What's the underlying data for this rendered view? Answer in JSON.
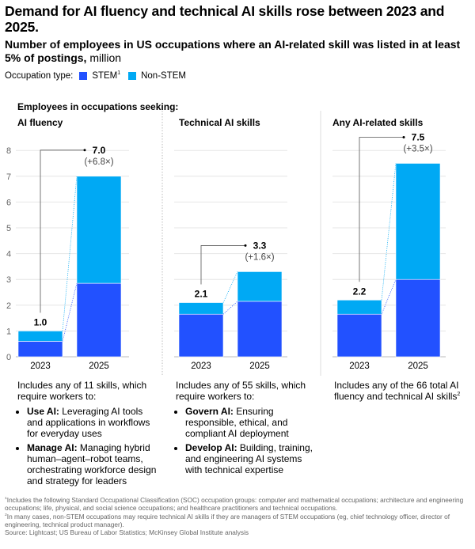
{
  "title": "Demand for AI fluency and technical AI skills rose between 2023 and 2025.",
  "subtitle": "Number of employees in US occupations where an AI-related skill was listed in at least 5% of postings,",
  "unit": "million",
  "legend": {
    "label": "Occupation type:",
    "items": [
      {
        "name": "STEM",
        "sup": "1",
        "color": "#2251ff"
      },
      {
        "name": "Non-STEM",
        "color": "#00a9f4"
      }
    ]
  },
  "seeking_label": "Employees in occupations seeking:",
  "chart_data": [
    {
      "type": "bar",
      "stacked": true,
      "title": "AI fluency",
      "categories": [
        "2023",
        "2025"
      ],
      "series": [
        {
          "name": "STEM",
          "values": [
            0.6,
            2.85
          ]
        },
        {
          "name": "Non-STEM",
          "values": [
            0.4,
            4.15
          ]
        }
      ],
      "totals": [
        "1.0",
        "7.0"
      ],
      "change": "(+6.8×)",
      "ylim": [
        0,
        8
      ],
      "yticks": [
        "0",
        "1",
        "2",
        "3",
        "4",
        "5",
        "6",
        "7",
        "8"
      ],
      "grid": true
    },
    {
      "type": "bar",
      "stacked": true,
      "title": "Technical AI skills",
      "categories": [
        "2023",
        "2025"
      ],
      "series": [
        {
          "name": "STEM",
          "values": [
            1.65,
            2.15
          ]
        },
        {
          "name": "Non-STEM",
          "values": [
            0.45,
            1.15
          ]
        }
      ],
      "totals": [
        "2.1",
        "3.3"
      ],
      "change": "(+1.6×)",
      "ylim": [
        0,
        8
      ],
      "grid": true
    },
    {
      "type": "bar",
      "stacked": true,
      "title": "Any AI-related skills",
      "categories": [
        "2023",
        "2025"
      ],
      "series": [
        {
          "name": "STEM",
          "values": [
            1.65,
            3.0
          ]
        },
        {
          "name": "Non-STEM",
          "values": [
            0.55,
            4.5
          ]
        }
      ],
      "totals": [
        "2.2",
        "7.5"
      ],
      "change": "(+3.5×)",
      "ylim": [
        0,
        8
      ],
      "grid": true
    }
  ],
  "descriptions": [
    {
      "intro": "Includes any of 11 skills, which require workers to:",
      "items": [
        {
          "bold": "Use AI:",
          "text": " Leveraging AI tools and applications in workflows for everyday uses"
        },
        {
          "bold": "Manage AI:",
          "text": " Managing hybrid human–agent–robot teams, orchestrating workforce design and strategy for leaders"
        }
      ]
    },
    {
      "intro": "Includes any of 55 skills, which require workers to:",
      "items": [
        {
          "bold": "Govern AI:",
          "text": " Ensuring responsible, ethical, and compliant AI deployment"
        },
        {
          "bold": "Develop AI:",
          "text": " Building, training, and engineering AI systems with technical expertise"
        }
      ]
    },
    {
      "intro": "Includes any of the 66 total AI fluency and technical AI skills",
      "sup": "2",
      "items": []
    }
  ],
  "footnotes": [
    {
      "sup": "1",
      "text": "Includes the following Standard Occupational Classification (SOC) occupation groups: computer and mathematical occupations; architecture and engineering occupations; life, physical, and social science occupations; and healthcare practitioners and technical occupations."
    },
    {
      "sup": "2",
      "text": "In many cases, non-STEM occupations may require technical AI skills if they are managers of STEM occupations (eg, chief technology officer, director of engineering, technical product manager)."
    }
  ],
  "source": "Source: Lightcast; US Bureau of Labor Statistics; McKinsey Global Institute analysis"
}
